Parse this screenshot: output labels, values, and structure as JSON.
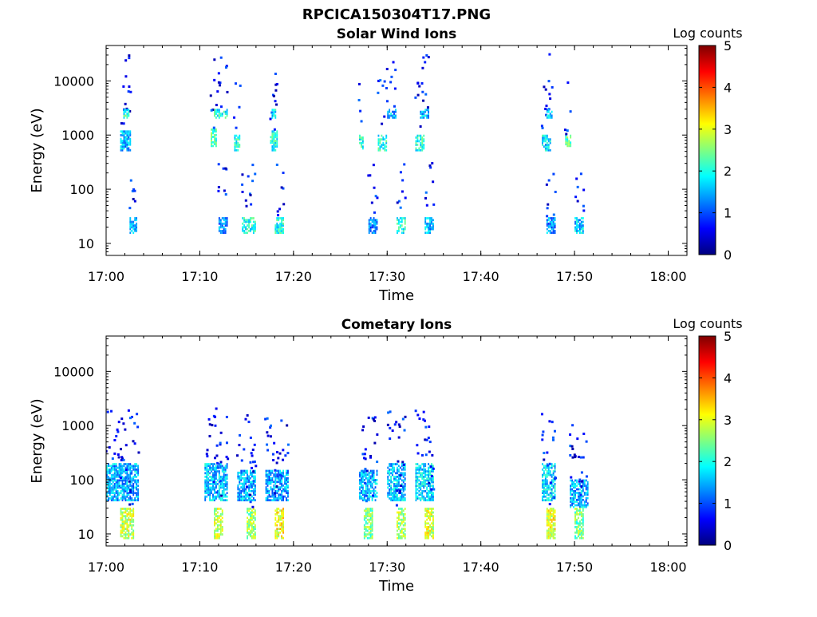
{
  "page_title": "RPCICA150304T17.PNG",
  "colors": {
    "jet": [
      "#00007f",
      "#0000ff",
      "#0080ff",
      "#00ffff",
      "#80ff80",
      "#ffff00",
      "#ff8000",
      "#ff0000",
      "#7f0000"
    ]
  },
  "chart_data": [
    {
      "type": "heatmap",
      "title": "Solar Wind Ions",
      "xlabel": "Time",
      "ylabel": "Energy (eV)",
      "xlim": [
        "17:00",
        "18:02"
      ],
      "x_ticks": [
        "17:00",
        "17:10",
        "17:20",
        "17:30",
        "17:40",
        "17:50",
        "18:00"
      ],
      "y_scale": "log",
      "ylim": [
        6,
        45000
      ],
      "y_ticks": [
        "10",
        "100",
        "1000",
        "10000"
      ],
      "colorbar": {
        "label": "Log counts",
        "min": 0,
        "max": 5,
        "ticks": [
          "0",
          "1",
          "2",
          "3",
          "4",
          "5"
        ]
      },
      "grid": false,
      "blobs": [
        {
          "t0": "17:01:30",
          "t1": "17:02:40",
          "e0": 500,
          "e1": 1200,
          "level": 1.5
        },
        {
          "t0": "17:01:50",
          "t1": "17:02:30",
          "e0": 2000,
          "e1": 3000,
          "level": 2
        },
        {
          "t0": "17:02:30",
          "t1": "17:03:20",
          "e0": 15,
          "e1": 30,
          "level": 1.5
        },
        {
          "t0": "17:11:30",
          "t1": "17:13:00",
          "e0": 2000,
          "e1": 3000,
          "level": 2
        },
        {
          "t0": "17:11:10",
          "t1": "17:11:50",
          "e0": 600,
          "e1": 1300,
          "level": 2.2
        },
        {
          "t0": "17:13:40",
          "t1": "17:14:20",
          "e0": 500,
          "e1": 1000,
          "level": 2
        },
        {
          "t0": "17:12:00",
          "t1": "17:13:00",
          "e0": 15,
          "e1": 30,
          "level": 1.2
        },
        {
          "t0": "17:14:30",
          "t1": "17:16:00",
          "e0": 15,
          "e1": 30,
          "level": 2
        },
        {
          "t0": "17:17:30",
          "t1": "17:18:20",
          "e0": 500,
          "e1": 1200,
          "level": 2
        },
        {
          "t0": "17:17:40",
          "t1": "17:18:10",
          "e0": 2000,
          "e1": 3000,
          "level": 1.8
        },
        {
          "t0": "17:18:00",
          "t1": "17:19:00",
          "e0": 15,
          "e1": 30,
          "level": 2
        },
        {
          "t0": "17:27:00",
          "t1": "17:27:30",
          "e0": 500,
          "e1": 1000,
          "level": 2
        },
        {
          "t0": "17:29:00",
          "t1": "17:30:00",
          "e0": 500,
          "e1": 1000,
          "level": 2
        },
        {
          "t0": "17:30:00",
          "t1": "17:31:00",
          "e0": 2000,
          "e1": 3000,
          "level": 1.5
        },
        {
          "t0": "17:28:00",
          "t1": "17:29:00",
          "e0": 15,
          "e1": 30,
          "level": 1.2
        },
        {
          "t0": "17:31:00",
          "t1": "17:32:00",
          "e0": 15,
          "e1": 30,
          "level": 2
        },
        {
          "t0": "17:33:00",
          "t1": "17:34:00",
          "e0": 500,
          "e1": 1000,
          "level": 2
        },
        {
          "t0": "17:33:30",
          "t1": "17:34:30",
          "e0": 2000,
          "e1": 3000,
          "level": 1.6
        },
        {
          "t0": "17:34:00",
          "t1": "17:35:00",
          "e0": 15,
          "e1": 30,
          "level": 1.5
        },
        {
          "t0": "17:46:30",
          "t1": "17:47:30",
          "e0": 500,
          "e1": 1000,
          "level": 1.8
        },
        {
          "t0": "17:47:00",
          "t1": "17:47:40",
          "e0": 2000,
          "e1": 3000,
          "level": 1.6
        },
        {
          "t0": "17:49:00",
          "t1": "17:49:40",
          "e0": 600,
          "e1": 1000,
          "level": 2.3
        },
        {
          "t0": "17:47:00",
          "t1": "17:48:00",
          "e0": 15,
          "e1": 30,
          "level": 1.3
        },
        {
          "t0": "17:50:00",
          "t1": "17:51:00",
          "e0": 15,
          "e1": 30,
          "level": 1.6
        }
      ]
    },
    {
      "type": "heatmap",
      "title": "Cometary Ions",
      "xlabel": "Time",
      "ylabel": "Energy (eV)",
      "xlim": [
        "17:00",
        "18:02"
      ],
      "x_ticks": [
        "17:00",
        "17:10",
        "17:20",
        "17:30",
        "17:40",
        "17:50",
        "18:00"
      ],
      "y_scale": "log",
      "ylim": [
        6,
        45000
      ],
      "y_ticks": [
        "10",
        "100",
        "1000",
        "10000"
      ],
      "colorbar": {
        "label": "Log counts",
        "min": 0,
        "max": 5,
        "ticks": [
          "0",
          "1",
          "2",
          "3",
          "4",
          "5"
        ]
      },
      "grid": false,
      "blobs": [
        {
          "t0": "17:00:00",
          "t1": "17:03:30",
          "e0": 40,
          "e1": 200,
          "level": 1.5
        },
        {
          "t0": "17:01:30",
          "t1": "17:03:00",
          "e0": 8,
          "e1": 30,
          "level": 2.8
        },
        {
          "t0": "17:10:30",
          "t1": "17:13:00",
          "e0": 40,
          "e1": 200,
          "level": 1.6
        },
        {
          "t0": "17:11:30",
          "t1": "17:12:30",
          "e0": 8,
          "e1": 30,
          "level": 2.8
        },
        {
          "t0": "17:14:00",
          "t1": "17:16:00",
          "e0": 40,
          "e1": 150,
          "level": 1.5
        },
        {
          "t0": "17:15:00",
          "t1": "17:16:00",
          "e0": 8,
          "e1": 30,
          "level": 2.6
        },
        {
          "t0": "17:17:00",
          "t1": "17:19:30",
          "e0": 40,
          "e1": 150,
          "level": 1.4
        },
        {
          "t0": "17:18:00",
          "t1": "17:19:00",
          "e0": 8,
          "e1": 30,
          "level": 3.1
        },
        {
          "t0": "17:27:00",
          "t1": "17:29:00",
          "e0": 40,
          "e1": 150,
          "level": 1.5
        },
        {
          "t0": "17:27:30",
          "t1": "17:28:30",
          "e0": 8,
          "e1": 30,
          "level": 2.5
        },
        {
          "t0": "17:30:00",
          "t1": "17:32:00",
          "e0": 40,
          "e1": 200,
          "level": 1.6
        },
        {
          "t0": "17:31:00",
          "t1": "17:32:00",
          "e0": 8,
          "e1": 30,
          "level": 2.7
        },
        {
          "t0": "17:33:00",
          "t1": "17:35:00",
          "e0": 40,
          "e1": 200,
          "level": 1.7
        },
        {
          "t0": "17:34:00",
          "t1": "17:35:00",
          "e0": 8,
          "e1": 30,
          "level": 2.9
        },
        {
          "t0": "17:46:30",
          "t1": "17:48:00",
          "e0": 40,
          "e1": 200,
          "level": 1.7
        },
        {
          "t0": "17:47:00",
          "t1": "17:48:00",
          "e0": 8,
          "e1": 30,
          "level": 3.0
        },
        {
          "t0": "17:49:30",
          "t1": "17:51:30",
          "e0": 30,
          "e1": 100,
          "level": 1.5
        },
        {
          "t0": "17:50:00",
          "t1": "17:51:00",
          "e0": 8,
          "e1": 30,
          "level": 2.4
        }
      ]
    }
  ]
}
